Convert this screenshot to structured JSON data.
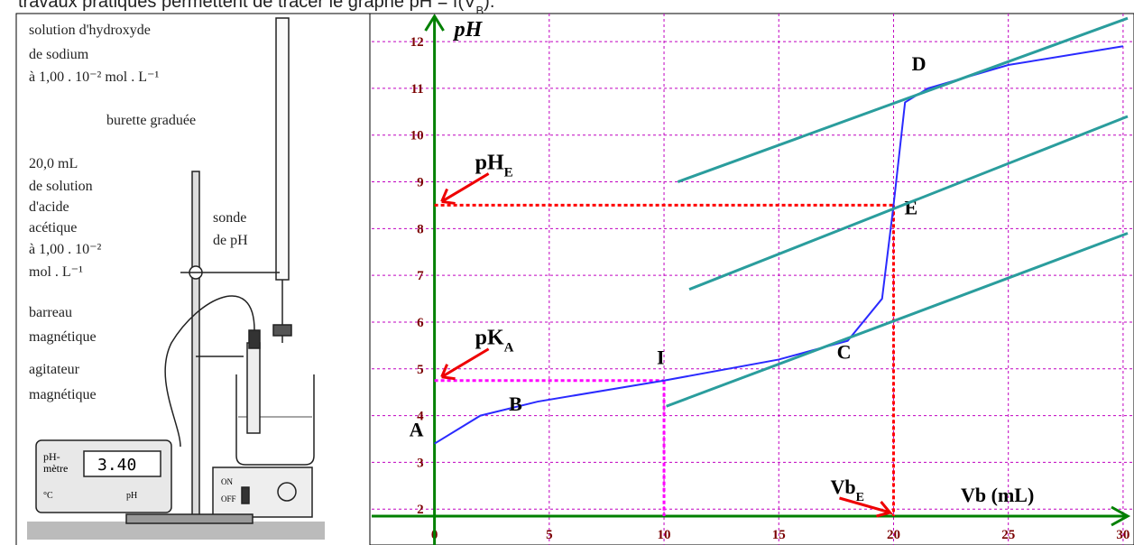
{
  "header": {
    "text": "travaux pratiques permettent de tracer le graphe pH = f(V",
    "sub": "B",
    "end": ")."
  },
  "apparatus": {
    "labels": [
      "solution d'hydroxyde",
      "de sodium",
      "à 1,00 . 10⁻² mol . L⁻¹",
      "burette graduée",
      "20,0 mL",
      "de solution",
      "d'acide",
      "acétique",
      "à 1,00 . 10⁻²",
      "mol . L⁻¹",
      "sonde",
      "de pH",
      "barreau",
      "magnétique",
      "agitateur",
      "magnétique"
    ],
    "meter": {
      "name1": "pH-",
      "name2": "mètre",
      "display": "3.40",
      "unit1": "°C",
      "unit2": "pH"
    },
    "stirrer": {
      "on": "ON",
      "off": "OFF"
    }
  },
  "chart_data": {
    "type": "line",
    "y_label": "pH",
    "x_label": "Vb (mL)",
    "xlim": [
      -2.5,
      30.2
    ],
    "ylim": [
      1.85,
      12.6
    ],
    "xticks": [
      0,
      5,
      10,
      15,
      20,
      25,
      30
    ],
    "yticks": [
      2,
      3,
      4,
      5,
      6,
      7,
      8,
      9,
      10,
      11,
      12
    ],
    "grid": true,
    "grid_color": "#c000c0",
    "axis_color": "#008000",
    "series": [
      {
        "color": "#2a2aff",
        "x": [
          0,
          2,
          4.5,
          10,
          15,
          18,
          19.5,
          20,
          20.5,
          21.5,
          25,
          30
        ],
        "values": [
          3.4,
          4.0,
          4.3,
          4.75,
          5.2,
          5.6,
          6.5,
          8.5,
          10.7,
          11.0,
          11.5,
          11.9
        ],
        "labels": [
          "A",
          null,
          "B",
          "I",
          null,
          "C",
          null,
          "E",
          null,
          "D",
          null,
          null
        ]
      },
      {
        "color": "#2a9d9d",
        "x": [
          10.6,
          30.2
        ],
        "values": [
          9.0,
          12.5
        ]
      },
      {
        "color": "#2a9d9d",
        "x": [
          11.1,
          30.2
        ],
        "values": [
          6.7,
          10.4
        ]
      },
      {
        "color": "#2a9d9d",
        "x": [
          10.1,
          30.2
        ],
        "values": [
          4.2,
          7.9
        ]
      }
    ],
    "guides": [
      {
        "x": 20,
        "y": 8.5,
        "color": "#ff0000",
        "label": "pH",
        "sub": "E",
        "x_label": "Vb",
        "x_sub": "E"
      },
      {
        "x": 10,
        "y": 4.75,
        "color": "#ff00ff",
        "label": "pK",
        "sub": "A"
      }
    ]
  }
}
